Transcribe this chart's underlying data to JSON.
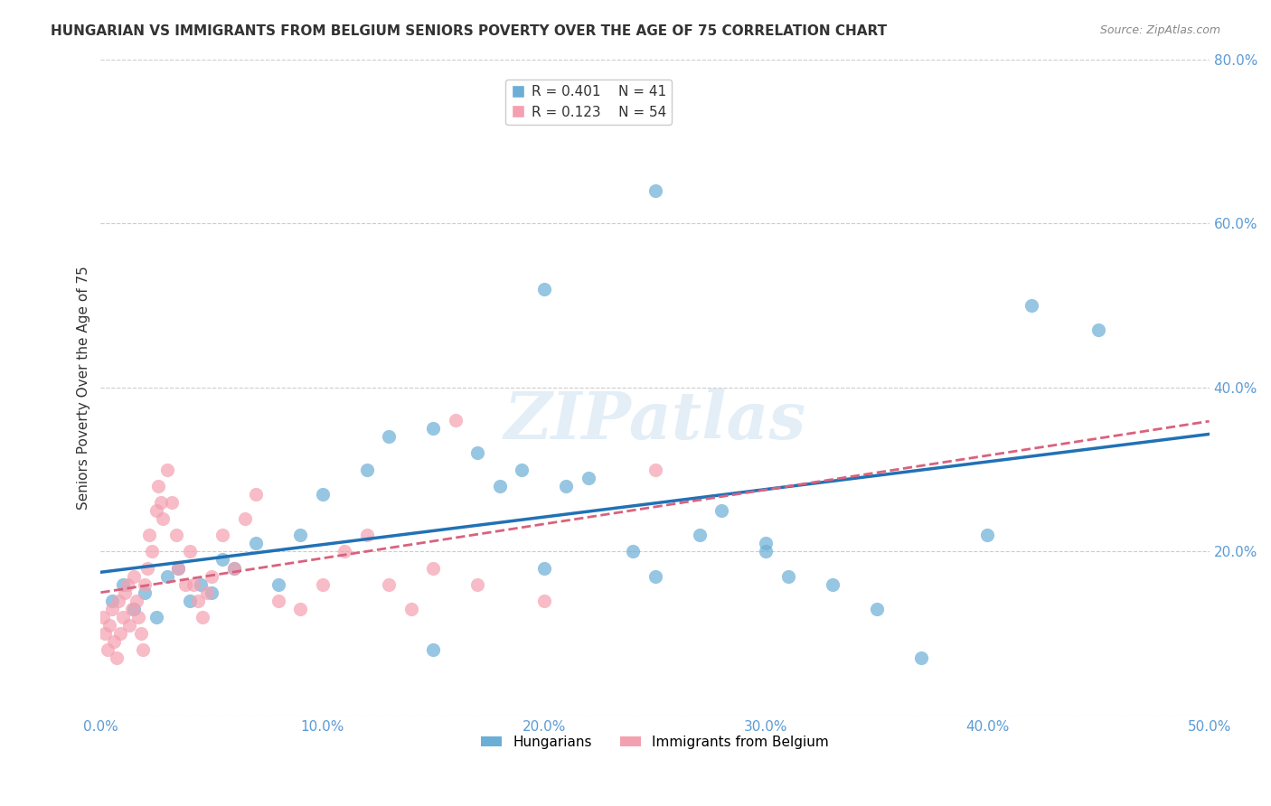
{
  "title": "HUNGARIAN VS IMMIGRANTS FROM BELGIUM SENIORS POVERTY OVER THE AGE OF 75 CORRELATION CHART",
  "source": "Source: ZipAtlas.com",
  "xlabel": "",
  "ylabel": "Seniors Poverty Over the Age of 75",
  "xlim": [
    0.0,
    0.5
  ],
  "ylim": [
    0.0,
    0.8
  ],
  "xticks": [
    0.0,
    0.1,
    0.2,
    0.3,
    0.4,
    0.5
  ],
  "yticks": [
    0.0,
    0.2,
    0.4,
    0.6,
    0.8
  ],
  "xticklabels": [
    "0.0%",
    "10.0%",
    "20.0%",
    "30.0%",
    "40.0%",
    "50.0%"
  ],
  "yticklabels": [
    "",
    "20.0%",
    "40.0%",
    "60.0%",
    "80.0%"
  ],
  "blue_color": "#6baed6",
  "pink_color": "#f4a0b0",
  "line_blue": "#2171b5",
  "line_pink": "#d9627d",
  "legend1_r": "0.401",
  "legend1_n": "41",
  "legend2_r": "0.123",
  "legend2_n": "54",
  "watermark": "ZIPatlas",
  "blue_scatter_x": [
    0.005,
    0.01,
    0.015,
    0.02,
    0.025,
    0.03,
    0.035,
    0.04,
    0.045,
    0.05,
    0.055,
    0.06,
    0.07,
    0.08,
    0.09,
    0.1,
    0.12,
    0.13,
    0.15,
    0.17,
    0.18,
    0.19,
    0.2,
    0.21,
    0.22,
    0.24,
    0.25,
    0.27,
    0.28,
    0.3,
    0.31,
    0.33,
    0.35,
    0.37,
    0.4,
    0.42,
    0.45,
    0.3,
    0.25,
    0.2,
    0.15
  ],
  "blue_scatter_y": [
    0.14,
    0.16,
    0.13,
    0.15,
    0.12,
    0.17,
    0.18,
    0.14,
    0.16,
    0.15,
    0.19,
    0.18,
    0.21,
    0.16,
    0.22,
    0.27,
    0.3,
    0.34,
    0.35,
    0.32,
    0.28,
    0.3,
    0.18,
    0.28,
    0.29,
    0.2,
    0.17,
    0.22,
    0.25,
    0.21,
    0.17,
    0.16,
    0.13,
    0.07,
    0.22,
    0.5,
    0.47,
    0.2,
    0.64,
    0.52,
    0.08
  ],
  "pink_scatter_x": [
    0.001,
    0.002,
    0.003,
    0.004,
    0.005,
    0.006,
    0.007,
    0.008,
    0.009,
    0.01,
    0.011,
    0.012,
    0.013,
    0.014,
    0.015,
    0.016,
    0.017,
    0.018,
    0.019,
    0.02,
    0.021,
    0.022,
    0.023,
    0.025,
    0.026,
    0.027,
    0.028,
    0.03,
    0.032,
    0.034,
    0.035,
    0.038,
    0.04,
    0.042,
    0.044,
    0.046,
    0.048,
    0.05,
    0.055,
    0.06,
    0.065,
    0.07,
    0.08,
    0.09,
    0.1,
    0.11,
    0.12,
    0.13,
    0.14,
    0.15,
    0.16,
    0.17,
    0.2,
    0.25
  ],
  "pink_scatter_y": [
    0.12,
    0.1,
    0.08,
    0.11,
    0.13,
    0.09,
    0.07,
    0.14,
    0.1,
    0.12,
    0.15,
    0.16,
    0.11,
    0.13,
    0.17,
    0.14,
    0.12,
    0.1,
    0.08,
    0.16,
    0.18,
    0.22,
    0.2,
    0.25,
    0.28,
    0.26,
    0.24,
    0.3,
    0.26,
    0.22,
    0.18,
    0.16,
    0.2,
    0.16,
    0.14,
    0.12,
    0.15,
    0.17,
    0.22,
    0.18,
    0.24,
    0.27,
    0.14,
    0.13,
    0.16,
    0.2,
    0.22,
    0.16,
    0.13,
    0.18,
    0.36,
    0.16,
    0.14,
    0.3
  ],
  "blue_line_x": [
    0.0,
    0.5
  ],
  "blue_line_y": [
    0.12,
    0.42
  ],
  "pink_line_x": [
    0.0,
    0.5
  ],
  "pink_line_y": [
    0.155,
    0.3
  ],
  "grid_color": "#cccccc",
  "background_color": "#ffffff",
  "title_fontsize": 11,
  "axis_color": "#5b9bd5",
  "tick_color": "#5b9bd5"
}
